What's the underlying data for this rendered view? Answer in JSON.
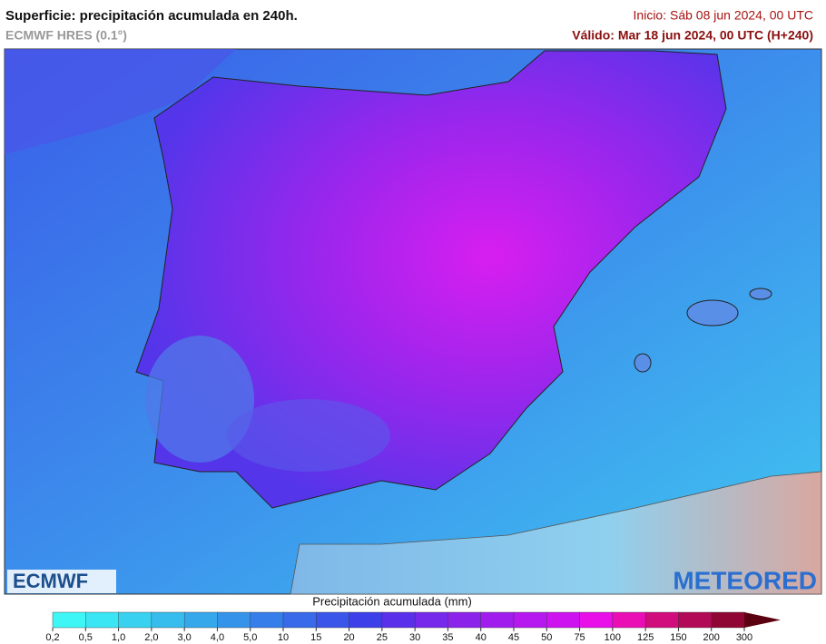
{
  "header": {
    "title": "Superficie: precipitación acumulada en 240h.",
    "subtitle": "ECMWF HRES (0.1°)",
    "init": "Inicio: Sáb 08 jun 2024, 00 UTC",
    "valid": "Válido: Mar 18 jun 2024, 00 UTC (H+240)"
  },
  "logos": {
    "left": "ECMWF",
    "right": "METEORED"
  },
  "legend": {
    "title": "Precipitación acumulada (mm)",
    "ticks": [
      "0,2",
      "0,5",
      "1,0",
      "2,0",
      "3,0",
      "4,0",
      "5,0",
      "10",
      "15",
      "20",
      "25",
      "30",
      "35",
      "40",
      "45",
      "50",
      "75",
      "100",
      "125",
      "150",
      "200",
      "300"
    ],
    "colors": [
      "#3ff6f6",
      "#3ae6f3",
      "#38d2f0",
      "#36bdee",
      "#35a8ec",
      "#3593ea",
      "#367eea",
      "#386ae9",
      "#3a55ea",
      "#3d3fe9",
      "#5b30ea",
      "#7629ea",
      "#8b23eb",
      "#a01ded",
      "#b519ef",
      "#cd13ef",
      "#e80fe8",
      "#e90fb4",
      "#d10d7d",
      "#b20a56",
      "#8f0635"
    ],
    "arrow_color": "#5a0010"
  }
}
